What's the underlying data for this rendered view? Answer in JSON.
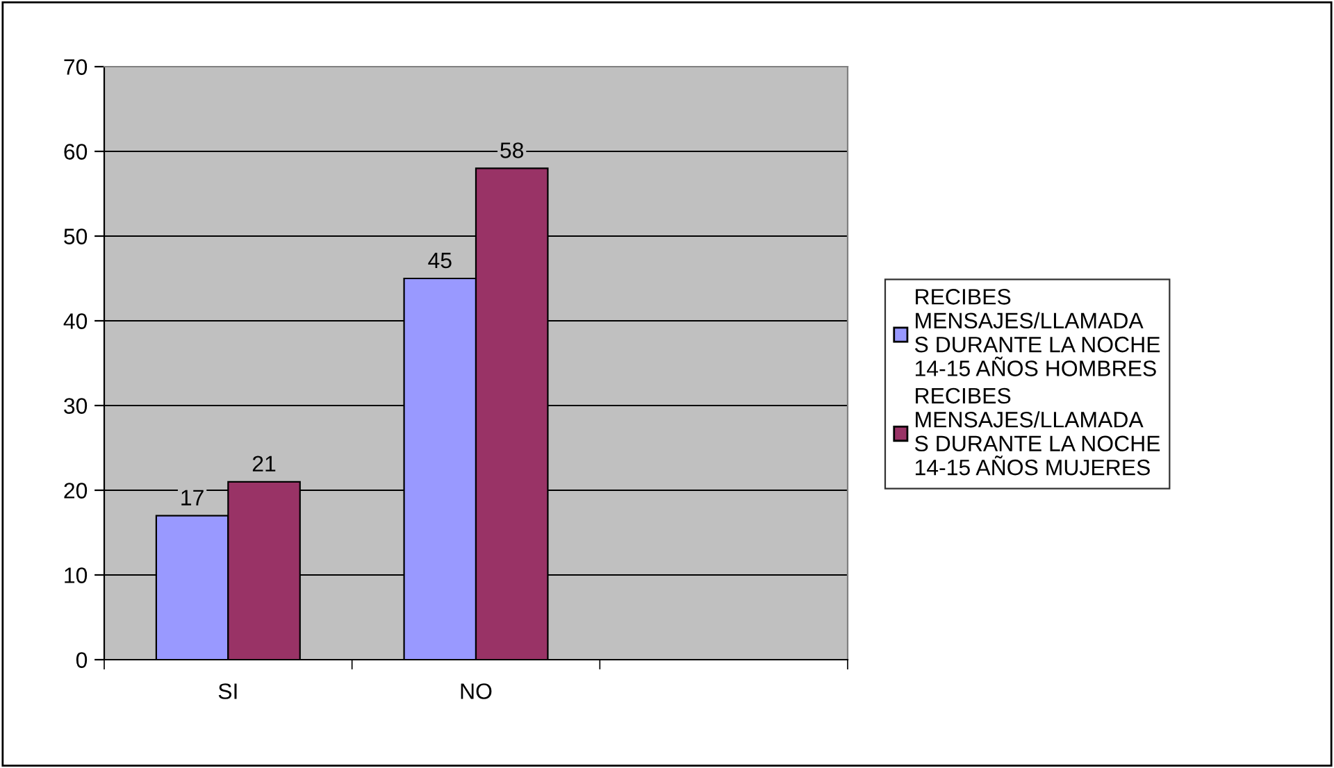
{
  "chart_data": {
    "type": "bar",
    "categories": [
      "SI",
      "NO",
      null
    ],
    "series": [
      {
        "name": "RECIBES\nMENSAJES/LLAMADA\nS DURANTE LA NOCHE\n14-15 AÑOS HOMBRES",
        "color": "#9999ff",
        "values": [
          17,
          45,
          null
        ]
      },
      {
        "name": "RECIBES\nMENSAJES/LLAMADA\nS DURANTE LA NOCHE\n14-15 AÑOS MUJERES",
        "color": "#993366",
        "values": [
          21,
          58,
          null
        ]
      }
    ],
    "ylim": [
      0,
      70
    ],
    "yticks": [
      0,
      10,
      20,
      30,
      40,
      50,
      60,
      70
    ],
    "grid": "y",
    "legend": "right",
    "data_labels": true
  }
}
